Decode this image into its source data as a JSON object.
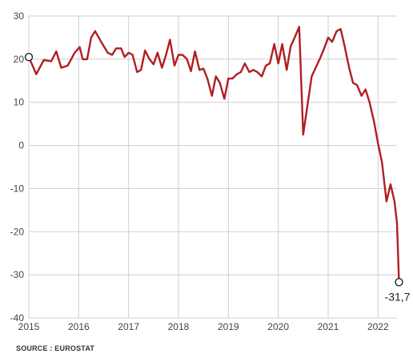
{
  "chart_data": {
    "type": "line",
    "title": "",
    "xlabel": "",
    "ylabel": "",
    "ylim": [
      -40,
      30
    ],
    "yticks": [
      30,
      20,
      10,
      0,
      -10,
      -20,
      -30,
      -40
    ],
    "xlim": [
      2015,
      2022.38
    ],
    "xticks": [
      "2015",
      "2016",
      "2017",
      "2018",
      "2019",
      "2020",
      "2021",
      "2022"
    ],
    "grid": true,
    "series": [
      {
        "color": "#b01e23",
        "points": [
          [
            2015.0,
            20.5
          ],
          [
            2015.15,
            16.5
          ],
          [
            2015.3,
            19.8
          ],
          [
            2015.45,
            19.5
          ],
          [
            2015.55,
            21.8
          ],
          [
            2015.65,
            18.0
          ],
          [
            2015.78,
            18.5
          ],
          [
            2015.92,
            21.5
          ],
          [
            2016.02,
            22.8
          ],
          [
            2016.08,
            20.0
          ],
          [
            2016.17,
            20.0
          ],
          [
            2016.25,
            25.0
          ],
          [
            2016.33,
            26.5
          ],
          [
            2016.45,
            24.0
          ],
          [
            2016.58,
            21.5
          ],
          [
            2016.67,
            21.0
          ],
          [
            2016.75,
            22.5
          ],
          [
            2016.85,
            22.5
          ],
          [
            2016.92,
            20.5
          ],
          [
            2017.0,
            21.5
          ],
          [
            2017.08,
            21.0
          ],
          [
            2017.17,
            17.0
          ],
          [
            2017.25,
            17.5
          ],
          [
            2017.33,
            22.0
          ],
          [
            2017.42,
            20.0
          ],
          [
            2017.5,
            18.8
          ],
          [
            2017.58,
            21.5
          ],
          [
            2017.67,
            18.0
          ],
          [
            2017.75,
            21.0
          ],
          [
            2017.83,
            24.5
          ],
          [
            2017.92,
            18.5
          ],
          [
            2018.0,
            21.0
          ],
          [
            2018.08,
            21.0
          ],
          [
            2018.17,
            20.0
          ],
          [
            2018.25,
            17.2
          ],
          [
            2018.33,
            21.8
          ],
          [
            2018.42,
            17.5
          ],
          [
            2018.5,
            17.8
          ],
          [
            2018.58,
            15.5
          ],
          [
            2018.67,
            11.5
          ],
          [
            2018.75,
            16.0
          ],
          [
            2018.83,
            14.5
          ],
          [
            2018.92,
            10.8
          ],
          [
            2019.0,
            15.5
          ],
          [
            2019.08,
            15.5
          ],
          [
            2019.17,
            16.5
          ],
          [
            2019.25,
            17.0
          ],
          [
            2019.33,
            19.0
          ],
          [
            2019.42,
            17.0
          ],
          [
            2019.5,
            17.5
          ],
          [
            2019.58,
            17.0
          ],
          [
            2019.67,
            16.0
          ],
          [
            2019.75,
            18.5
          ],
          [
            2019.83,
            19.0
          ],
          [
            2019.92,
            23.5
          ],
          [
            2020.0,
            19.0
          ],
          [
            2020.08,
            23.5
          ],
          [
            2020.17,
            17.5
          ],
          [
            2020.25,
            23.0
          ],
          [
            2020.33,
            25.0
          ],
          [
            2020.42,
            27.5
          ],
          [
            2020.5,
            2.5
          ],
          [
            2020.67,
            16.0
          ],
          [
            2020.83,
            20.0
          ],
          [
            2020.92,
            22.5
          ],
          [
            2021.0,
            25.0
          ],
          [
            2021.08,
            24.0
          ],
          [
            2021.17,
            26.5
          ],
          [
            2021.25,
            27.0
          ],
          [
            2021.33,
            23.0
          ],
          [
            2021.42,
            18.0
          ],
          [
            2021.5,
            14.5
          ],
          [
            2021.58,
            14.0
          ],
          [
            2021.67,
            11.5
          ],
          [
            2021.75,
            13.0
          ],
          [
            2021.83,
            10.0
          ],
          [
            2021.92,
            5.5
          ],
          [
            2022.0,
            0.5
          ],
          [
            2022.08,
            -4.0
          ],
          [
            2022.17,
            -13.0
          ],
          [
            2022.25,
            -9.0
          ],
          [
            2022.33,
            -13.0
          ],
          [
            2022.38,
            -18.0
          ],
          [
            2022.42,
            -31.7
          ]
        ]
      }
    ],
    "markers": [
      {
        "x": 2015.0,
        "y": 20.5,
        "label": ""
      },
      {
        "x": 2022.42,
        "y": -31.7,
        "label": "-31,7"
      }
    ],
    "source": "SOURCE : EUROSTAT"
  }
}
